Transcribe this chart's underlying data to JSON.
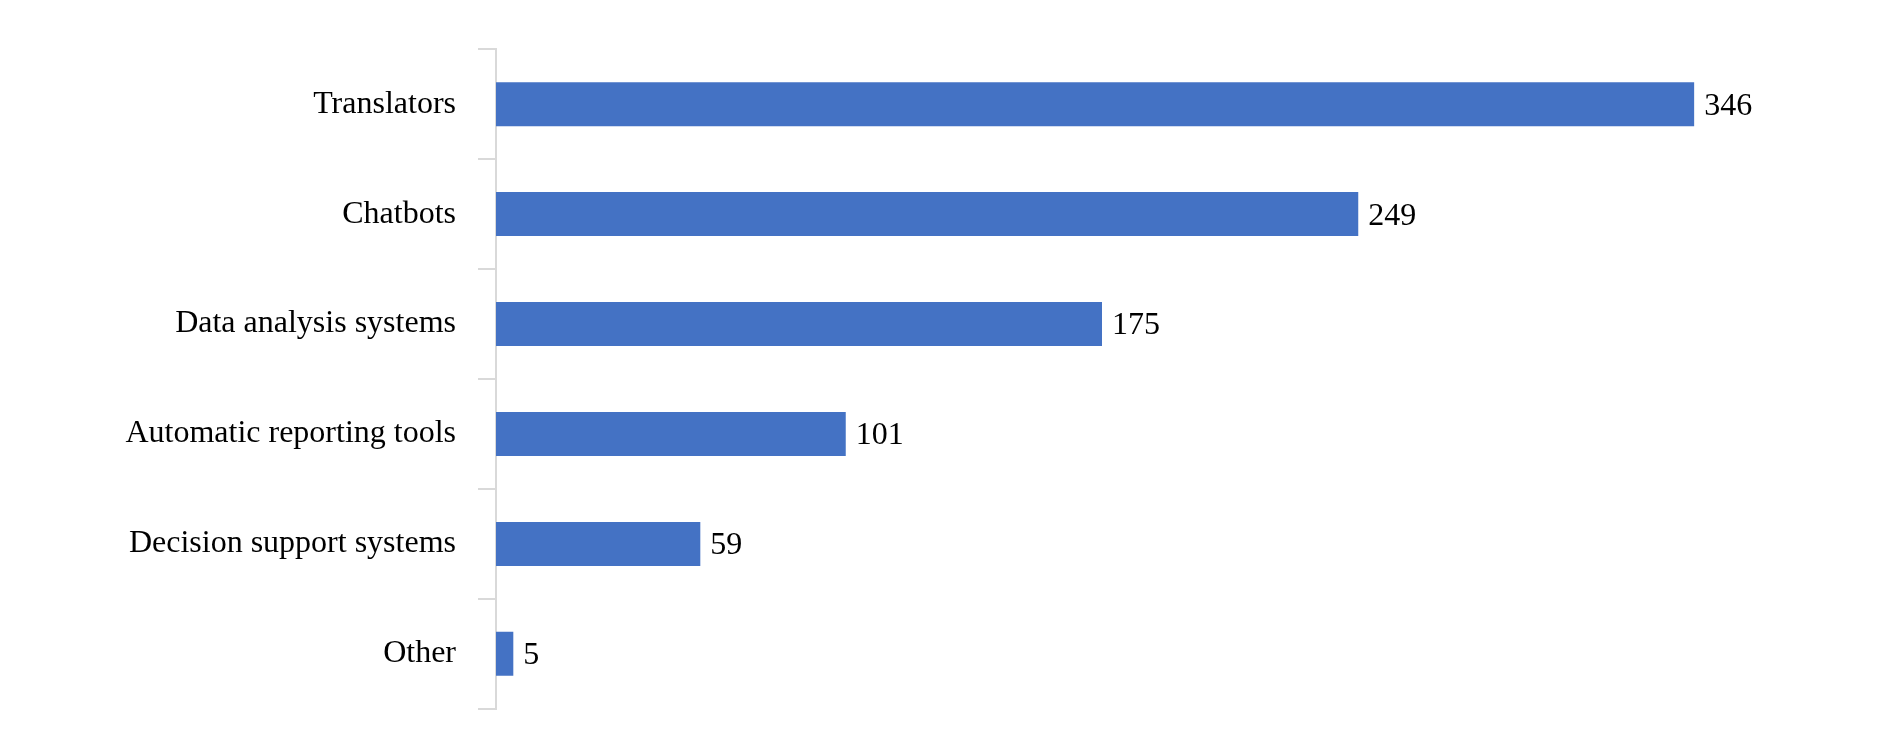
{
  "chart_data": {
    "type": "bar",
    "orientation": "horizontal",
    "categories": [
      "Translators",
      "Chatbots",
      "Data analysis systems",
      "Automatic reporting tools",
      "Decision support systems",
      "Other"
    ],
    "values": [
      346,
      249,
      175,
      101,
      59,
      5
    ],
    "color": "#4472c4",
    "data_labels": true,
    "legend": false,
    "tick_labels": "y"
  }
}
